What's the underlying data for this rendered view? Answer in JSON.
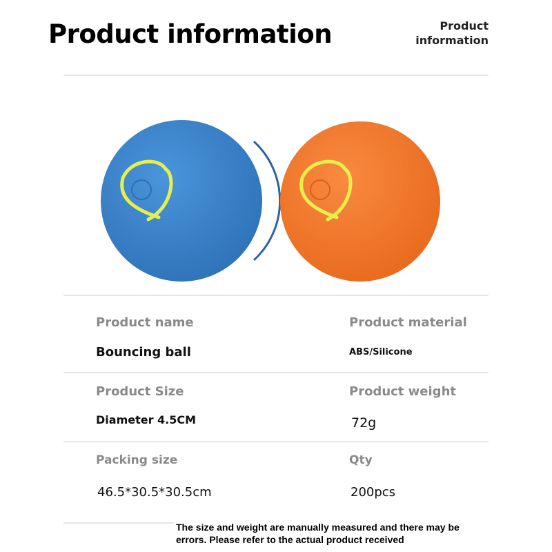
{
  "header": {
    "title": "Product information",
    "corner_label_line1": "Product",
    "corner_label_line2": "information"
  },
  "image": {
    "balls": [
      {
        "color": "blue",
        "hex": "#3d87d0"
      },
      {
        "color": "orange",
        "hex": "#f47b30"
      }
    ],
    "glow_hex": "#e6f04a"
  },
  "specs": {
    "name_label": "Product name",
    "name_value": "Bouncing ball",
    "material_label": "Product material",
    "material_value": "ABS/Silicone",
    "size_label": "Product Size",
    "size_value": "Diameter 4.5CM",
    "weight_label": "Product weight",
    "weight_value": "72g",
    "packing_label": "Packing size",
    "packing_value": "46.5*30.5*30.5cm",
    "qty_label": "Qty",
    "qty_value": "200pcs"
  },
  "footer": {
    "note_line1": "The size and weight are manually measured and there may be",
    "note_line2": "errors. Please refer to the actual product received"
  }
}
